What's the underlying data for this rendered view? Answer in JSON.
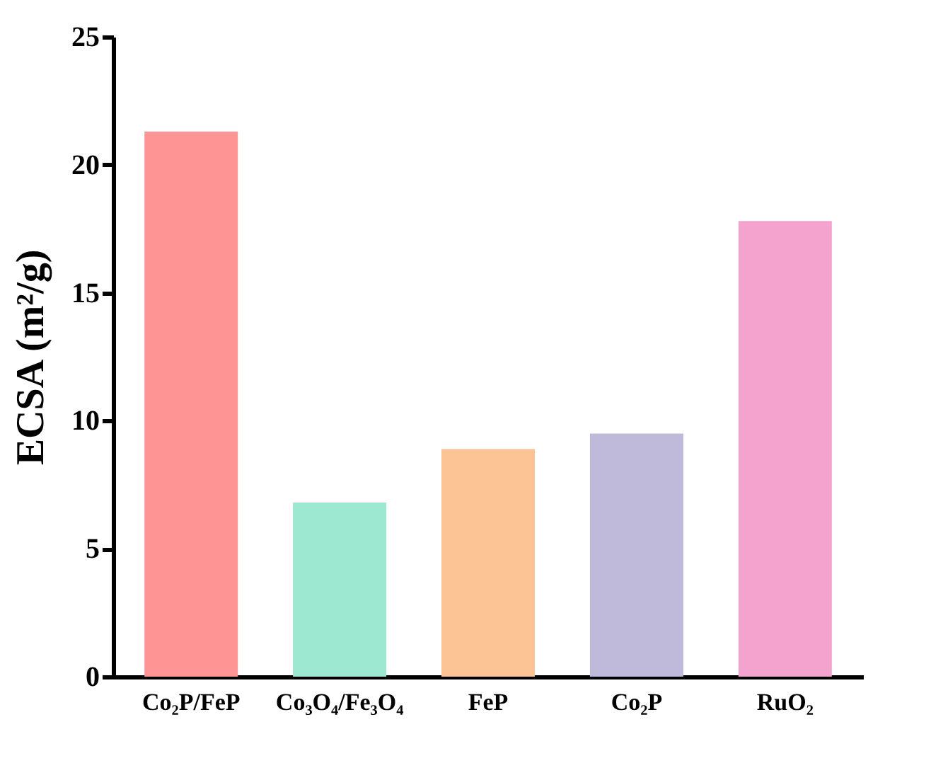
{
  "chart_data": {
    "type": "bar",
    "ylabel": "ECSA (m²/g)",
    "categories": [
      "Co₂P/FeP",
      "Co₃O₄/Fe₃O₄",
      "FeP",
      "Co₂P",
      "RuO₂"
    ],
    "values": [
      21.3,
      6.8,
      8.9,
      9.5,
      17.8
    ],
    "colors": [
      "#fe9494",
      "#9de8d0",
      "#fcc394",
      "#bfb9da",
      "#f4a3cf"
    ],
    "ylim": [
      0,
      25
    ],
    "yticks": [
      0,
      5,
      10,
      15,
      20,
      25
    ],
    "grid": false
  }
}
